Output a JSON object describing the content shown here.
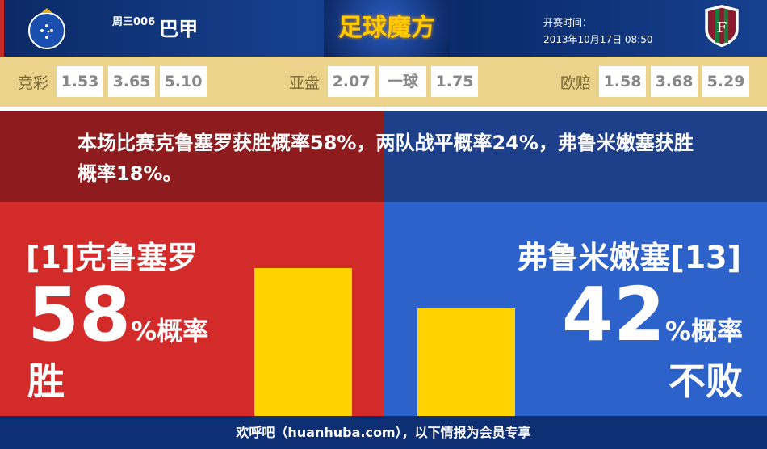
{
  "header": {
    "league_prefix": "周三006",
    "league": "巴甲",
    "brand": "足球魔方",
    "kickoff_label": "开赛时间：",
    "kickoff_time": "2013年10月17日 08:50",
    "home_logo": "cruzeiro-crest",
    "away_logo": "fluminense-crest"
  },
  "odds": {
    "jingcai": {
      "label": "竞彩",
      "values": [
        "1.53",
        "3.65",
        "5.10"
      ]
    },
    "yapan": {
      "label": "亚盘",
      "values": [
        "2.07",
        "一球",
        "1.75"
      ]
    },
    "oupei": {
      "label": "欧赔",
      "values": [
        "1.58",
        "3.68",
        "5.29"
      ]
    }
  },
  "summary": "本场比赛克鲁塞罗获胜概率58%，两队战平概率24%，弗鲁米嫩塞获胜概率18%。",
  "home": {
    "team": "[1]克鲁塞罗",
    "percent": 58,
    "percent_text": "58",
    "unit": "%概率",
    "result": "胜",
    "color": "#d32a2a"
  },
  "away": {
    "team": "弗鲁米嫩塞[13]",
    "percent": 42,
    "percent_text": "42",
    "unit": "%概率",
    "result": "不败",
    "color": "#2c62c9"
  },
  "bar_color": "#ffd200",
  "footer": "欢呼吧（huanhuba.com），以下情报为会员专享"
}
